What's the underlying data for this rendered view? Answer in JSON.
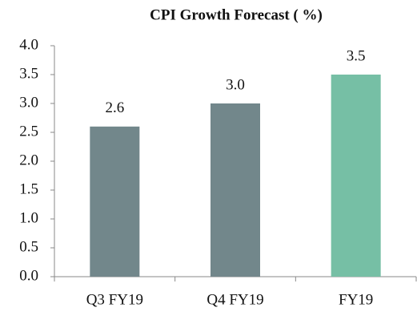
{
  "chart_data": {
    "type": "bar",
    "title": "CPI Growth Forecast ( %)",
    "categories": [
      "Q3 FY19",
      "Q4 FY19",
      "FY19"
    ],
    "values": [
      2.6,
      3.0,
      3.5
    ],
    "value_labels": [
      "2.6",
      "3.0",
      "3.5"
    ],
    "colors": [
      "#72878b",
      "#72878b",
      "#76bfa5"
    ],
    "ylim": [
      0,
      4
    ],
    "yticks": [
      {
        "value": 0,
        "label": "0.0"
      },
      0.5,
      {
        "value": 1,
        "label": "1.0"
      },
      1.5,
      {
        "value": 2,
        "label": "2.0"
      },
      2.5,
      {
        "value": 3,
        "label": "3.0"
      },
      3.5,
      {
        "value": 4,
        "label": "4.0"
      }
    ],
    "grid": false
  }
}
